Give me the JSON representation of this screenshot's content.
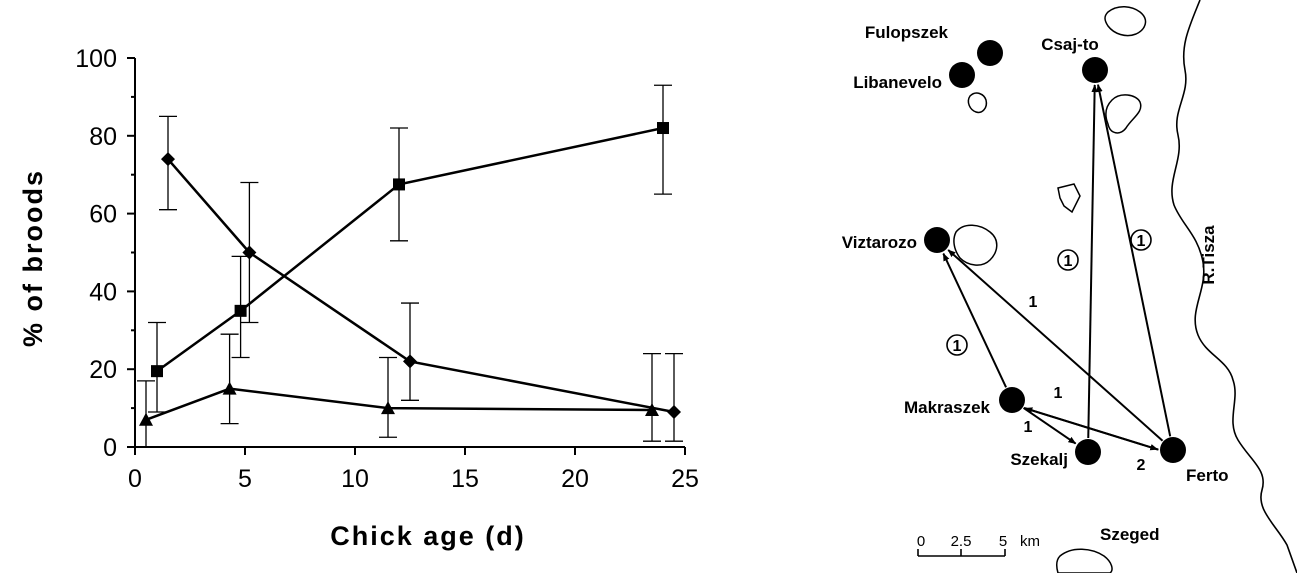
{
  "chart_data": {
    "type": "line",
    "title": "",
    "xlabel": "Chick age (d)",
    "ylabel": "% of broods",
    "xlim": [
      0,
      25
    ],
    "ylim": [
      0,
      100
    ],
    "xticks": [
      0,
      5,
      10,
      15,
      20,
      25
    ],
    "yticks": [
      0,
      20,
      40,
      60,
      80,
      100
    ],
    "grid": false,
    "series": [
      {
        "name": "diamond",
        "marker": "diamond",
        "points": [
          {
            "x": 1.5,
            "y": 74,
            "lo": 61,
            "hi": 85
          },
          {
            "x": 5.2,
            "y": 50,
            "lo": 32,
            "hi": 68
          },
          {
            "x": 12.5,
            "y": 22,
            "lo": 12,
            "hi": 37
          },
          {
            "x": 24.5,
            "y": 9,
            "lo": 1.5,
            "hi": 24
          }
        ]
      },
      {
        "name": "square",
        "marker": "square",
        "points": [
          {
            "x": 1,
            "y": 19.5,
            "lo": 9,
            "hi": 32
          },
          {
            "x": 4.8,
            "y": 35,
            "lo": 23,
            "hi": 49
          },
          {
            "x": 12,
            "y": 67.5,
            "lo": 53,
            "hi": 82
          },
          {
            "x": 24,
            "y": 82,
            "lo": 65,
            "hi": 93
          }
        ]
      },
      {
        "name": "triangle",
        "marker": "triangle",
        "points": [
          {
            "x": 0.5,
            "y": 7,
            "lo": 0,
            "hi": 17
          },
          {
            "x": 4.3,
            "y": 15,
            "lo": 6,
            "hi": 29
          },
          {
            "x": 11.5,
            "y": 10,
            "lo": 2.5,
            "hi": 23
          },
          {
            "x": 23.5,
            "y": 9.5,
            "lo": 1.5,
            "hi": 24
          }
        ]
      }
    ]
  },
  "map": {
    "sites": [
      "Fulopszek",
      "Libanevelo",
      "Csaj-to",
      "Viztarozo",
      "Makraszek",
      "Szekalj",
      "Ferto"
    ],
    "river_label": "R.Tisza",
    "city_label": "Szeged",
    "scale": {
      "ticks": [
        "0",
        "2.5",
        "5"
      ],
      "unit": "km"
    },
    "movements": [
      {
        "from": "Ferto",
        "to": "Csaj-to",
        "count": "1",
        "circled": true
      },
      {
        "from": "Szekalj",
        "to": "Csaj-to",
        "count": "1",
        "circled": true
      },
      {
        "from": "Ferto",
        "to": "Viztarozo",
        "count": "1",
        "circled": false
      },
      {
        "from": "Makraszek",
        "to": "Viztarozo",
        "count": "1",
        "circled": true
      },
      {
        "from": "Ferto",
        "to": "Makraszek",
        "count": "1",
        "circled": false
      },
      {
        "from": "Makraszek",
        "to": "Szekalj",
        "count": "1",
        "circled": false
      },
      {
        "from": "Makraszek",
        "to": "Ferto",
        "count": "2",
        "circled": false
      }
    ]
  }
}
